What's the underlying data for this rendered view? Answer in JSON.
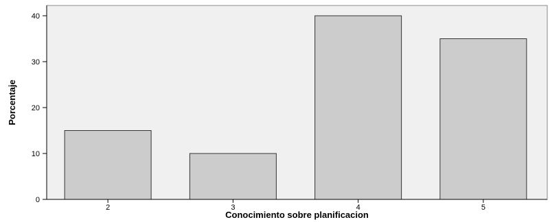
{
  "chart_data": {
    "type": "bar",
    "categories": [
      "2",
      "3",
      "4",
      "5"
    ],
    "values": [
      15,
      10,
      40,
      35
    ],
    "xlabel": "Conocimiento sobre planificacion",
    "ylabel": "Porcentaje",
    "ylim": [
      0,
      40
    ],
    "yticks": [
      0,
      10,
      20,
      30,
      40
    ],
    "grid": false,
    "legend": "none",
    "colors": {
      "plot_background": "#f0f0f0",
      "bar_fill": "#cccccc",
      "bar_stroke": "#333333",
      "axis": "#000000"
    }
  }
}
